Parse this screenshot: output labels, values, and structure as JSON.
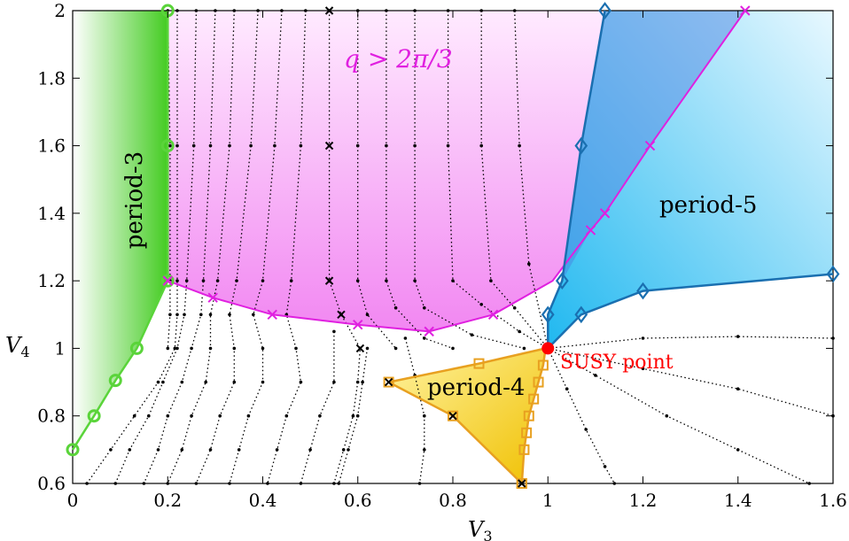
{
  "chart_data": {
    "type": "scatter",
    "xlabel": "V",
    "xlabel_sub": "3",
    "ylabel": "V",
    "ylabel_sub": "4",
    "xlim": [
      0,
      1.6
    ],
    "ylim": [
      0.6,
      2.0
    ],
    "x_ticks": [
      0,
      0.2,
      0.4,
      0.6,
      0.8,
      1,
      1.2,
      1.4,
      1.6
    ],
    "x_tick_labels": [
      "0",
      "0.2",
      "0.4",
      "0.6",
      "0.8",
      "1",
      "1.2",
      "1.4",
      "1.6"
    ],
    "y_ticks": [
      0.6,
      0.8,
      1,
      1.2,
      1.4,
      1.6,
      1.8,
      2
    ],
    "y_tick_labels": [
      "0.6",
      "0.8",
      "1",
      "1.2",
      "1.4",
      "1.6",
      "1.8",
      "2"
    ],
    "grid": false,
    "colors": {
      "period3": "#5ad43a",
      "incommensurate": "#e020e0",
      "period4": "#e8a020",
      "period5": "#1a6fb0",
      "susy": "#ff0000",
      "dotted": "#000000"
    },
    "regions": {
      "period3": {
        "label": "period-3",
        "boundary": [
          [
            0.2,
            2.0
          ],
          [
            0.2,
            1.6
          ],
          [
            0.2,
            1.2
          ],
          [
            0.135,
            1.0
          ],
          [
            0.09,
            0.905
          ],
          [
            0.045,
            0.8
          ],
          [
            0,
            0.7
          ]
        ],
        "markers": [
          [
            0.2,
            2.0
          ],
          [
            0.2,
            1.6
          ],
          [
            0.2,
            1.2
          ],
          [
            0.135,
            1.0
          ],
          [
            0.09,
            0.905
          ],
          [
            0.045,
            0.8
          ],
          [
            0,
            0.7
          ]
        ]
      },
      "incommensurate": {
        "label": "q > 2π/3",
        "boundary": [
          [
            0.2,
            1.2
          ],
          [
            0.295,
            1.15
          ],
          [
            0.42,
            1.1
          ],
          [
            0.6,
            1.07
          ],
          [
            0.75,
            1.05
          ],
          [
            0.885,
            1.1
          ],
          [
            1.01,
            1.2
          ],
          [
            1.09,
            1.35
          ],
          [
            1.12,
            1.4
          ],
          [
            1.215,
            1.6
          ],
          [
            1.415,
            2.0
          ]
        ],
        "markers": [
          [
            0.2,
            1.2
          ],
          [
            0.295,
            1.15
          ],
          [
            0.42,
            1.1
          ],
          [
            0.6,
            1.07
          ],
          [
            0.75,
            1.05
          ],
          [
            0.885,
            1.1
          ],
          [
            1.09,
            1.35
          ],
          [
            1.12,
            1.4
          ],
          [
            1.215,
            1.6
          ],
          [
            1.415,
            2.0
          ]
        ]
      },
      "period4": {
        "label": "period-4",
        "boundary": [
          [
            0.665,
            0.9
          ],
          [
            0.855,
            0.955
          ],
          [
            0.995,
            1.0
          ],
          [
            0.99,
            0.95
          ],
          [
            0.98,
            0.9
          ],
          [
            0.97,
            0.85
          ],
          [
            0.96,
            0.8
          ],
          [
            0.955,
            0.75
          ],
          [
            0.95,
            0.7
          ],
          [
            0.945,
            0.6
          ],
          [
            0.8,
            0.8
          ],
          [
            0.665,
            0.9
          ]
        ],
        "markers": [
          [
            0.855,
            0.955
          ],
          [
            0.99,
            0.95
          ],
          [
            0.98,
            0.9
          ],
          [
            0.97,
            0.85
          ],
          [
            0.96,
            0.8
          ],
          [
            0.955,
            0.75
          ],
          [
            0.95,
            0.7
          ],
          [
            0.945,
            0.6
          ]
        ],
        "cross_markers": [
          [
            0.665,
            0.9
          ],
          [
            0.8,
            0.8
          ],
          [
            0.945,
            0.6
          ]
        ]
      },
      "period5": {
        "label": "period-5",
        "boundary": [
          [
            1.0,
            1.0
          ],
          [
            1.0,
            1.1
          ],
          [
            1.03,
            1.2
          ],
          [
            1.07,
            1.6
          ],
          [
            1.12,
            2.0
          ]
        ],
        "lower_boundary": [
          [
            1.0,
            1.0
          ],
          [
            1.07,
            1.1
          ],
          [
            1.2,
            1.17
          ],
          [
            1.6,
            1.22
          ]
        ],
        "markers": [
          [
            1.0,
            1.1
          ],
          [
            1.03,
            1.2
          ],
          [
            1.07,
            1.6
          ],
          [
            1.12,
            2.0
          ],
          [
            1.07,
            1.1
          ],
          [
            1.2,
            1.17
          ],
          [
            1.6,
            1.22
          ]
        ]
      }
    },
    "susy_point": {
      "label": "SUSY point",
      "x": 1.0,
      "y": 1.0
    },
    "q_label": {
      "text": "q > 2π/3"
    },
    "cross_points": [
      [
        0.54,
        2.0
      ],
      [
        0.54,
        1.6
      ],
      [
        0.54,
        1.2
      ],
      [
        0.565,
        1.1
      ],
      [
        0.605,
        1.0
      ]
    ]
  }
}
